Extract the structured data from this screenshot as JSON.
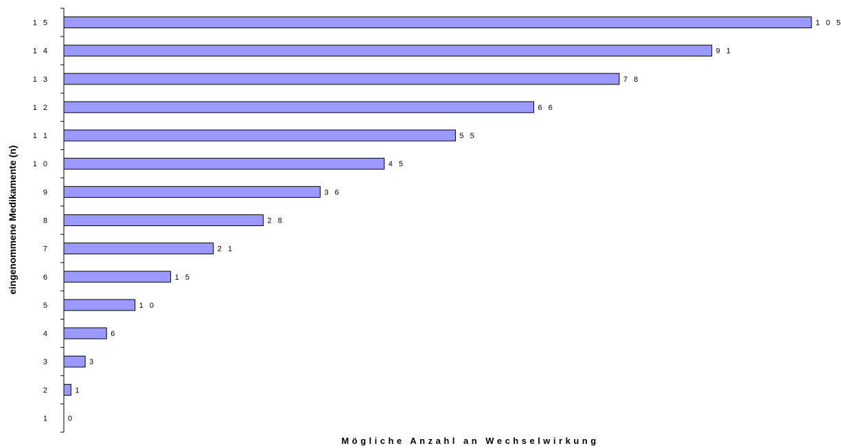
{
  "chart_data": {
    "type": "bar",
    "orientation": "horizontal",
    "title": "",
    "xlabel": "Mögliche Anzahl an Wechselwirkung",
    "ylabel": "eingenommene Medikamente (n)",
    "categories": [
      "1",
      "2",
      "3",
      "4",
      "5",
      "6",
      "7",
      "8",
      "9",
      "10",
      "11",
      "12",
      "13",
      "14",
      "15"
    ],
    "category_labels": [
      "1",
      "2",
      "3",
      "4",
      "5",
      "6",
      "7",
      "8",
      "9",
      "1 0",
      "1 1",
      "1 2",
      "1 3",
      "1 4",
      "1 5"
    ],
    "values": [
      0,
      1,
      3,
      6,
      10,
      15,
      21,
      28,
      36,
      45,
      55,
      66,
      78,
      91,
      105
    ],
    "value_labels": [
      "0",
      "1",
      "3",
      "6",
      "1 0",
      "1 5",
      "2 1",
      "2 8",
      "3 6",
      "4 5",
      "5 5",
      "6 6",
      "7 8",
      "9 1",
      "1 0 5"
    ],
    "xlim": [
      0,
      105
    ],
    "grid": false,
    "legend": "none",
    "bar_color": "#9999ff",
    "bar_border_color": "#000000"
  }
}
